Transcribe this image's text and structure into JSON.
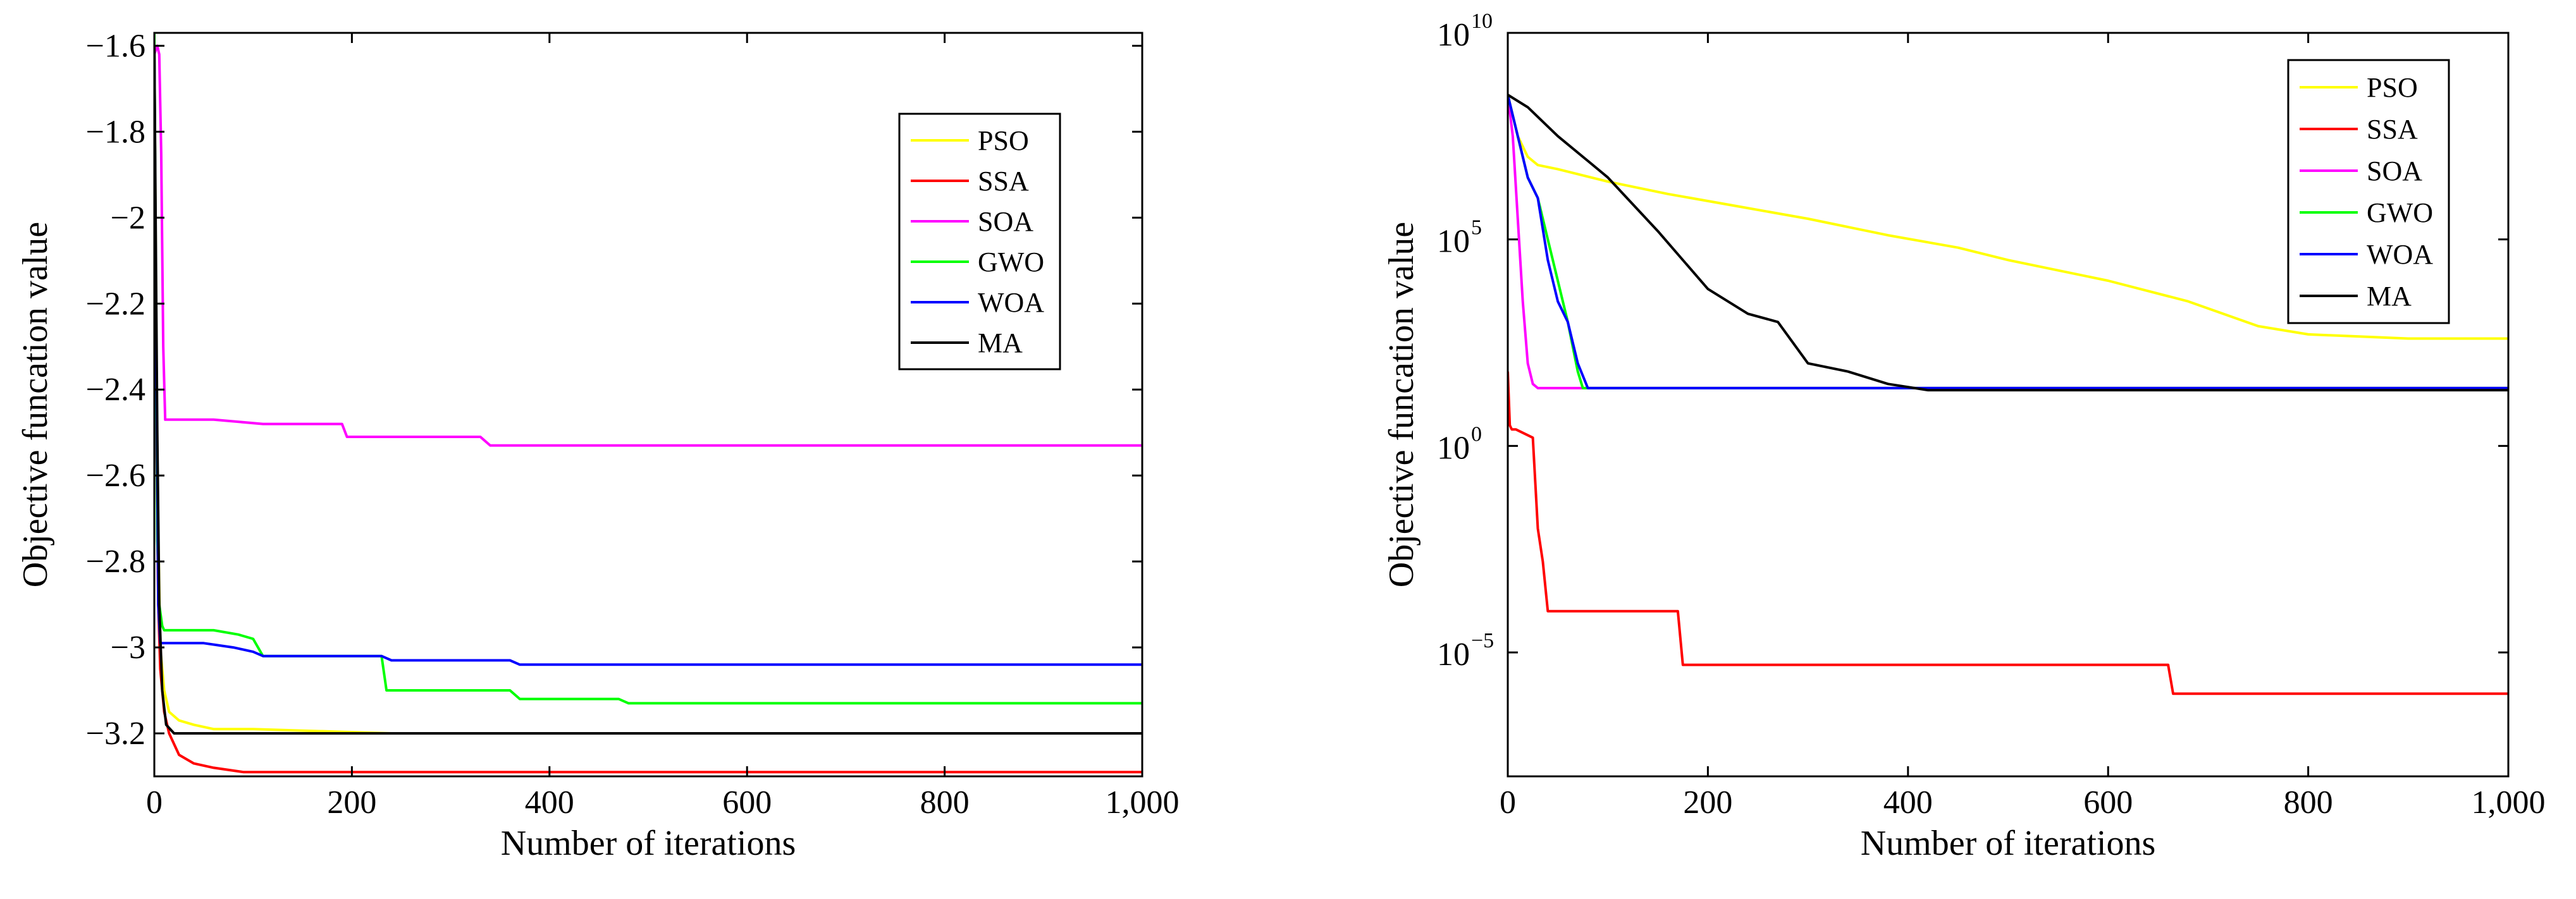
{
  "chart_data": [
    {
      "type": "line",
      "title": "",
      "xlabel": "Number of iterations",
      "ylabel": "Objective funcation value",
      "xlim": [
        0,
        1000
      ],
      "ylim": [
        -3.3,
        -1.57
      ],
      "yscale": "linear",
      "xticks": [
        0,
        200,
        400,
        600,
        800,
        1000
      ],
      "xtick_labels": [
        "0",
        "200",
        "400",
        "600",
        "800",
        "1,000"
      ],
      "yticks": [
        -1.6,
        -1.8,
        -2,
        -2.2,
        -2.4,
        -2.6,
        -2.8,
        -3,
        -3.2
      ],
      "ytick_labels": [
        "-1.6",
        "-1.8",
        "-2",
        "-2.2",
        "-2.4",
        "-2.6",
        "-2.8",
        "-3",
        "-3.2"
      ],
      "legend": "top-right",
      "series": [
        {
          "name": "PSO",
          "color": "#ffff00",
          "x": [
            0,
            3,
            6,
            10,
            15,
            25,
            40,
            60,
            100,
            240,
            1000
          ],
          "y": [
            -1.6,
            -2.6,
            -3.0,
            -3.1,
            -3.15,
            -3.17,
            -3.18,
            -3.19,
            -3.19,
            -3.2,
            -3.2
          ]
        },
        {
          "name": "SSA",
          "color": "#ff0000",
          "x": [
            0,
            2,
            4,
            6,
            10,
            15,
            25,
            40,
            60,
            90,
            1000
          ],
          "y": [
            -1.6,
            -2.5,
            -2.9,
            -3.05,
            -3.15,
            -3.2,
            -3.25,
            -3.27,
            -3.28,
            -3.29,
            -3.29
          ]
        },
        {
          "name": "SOA",
          "color": "#ff00ff",
          "x": [
            0,
            3,
            5,
            7,
            9,
            11,
            60,
            110,
            190,
            195,
            330,
            340,
            1000
          ],
          "y": [
            -1.62,
            -1.6,
            -1.62,
            -1.85,
            -2.3,
            -2.47,
            -2.47,
            -2.48,
            -2.48,
            -2.51,
            -2.51,
            -2.53,
            -2.53
          ]
        },
        {
          "name": "GWO",
          "color": "#00ff00",
          "x": [
            0,
            3,
            5,
            8,
            10,
            60,
            85,
            100,
            110,
            230,
            235,
            360,
            370,
            470,
            480,
            1000
          ],
          "y": [
            -1.57,
            -2.75,
            -2.9,
            -2.95,
            -2.96,
            -2.96,
            -2.97,
            -2.98,
            -3.02,
            -3.02,
            -3.1,
            -3.1,
            -3.12,
            -3.12,
            -3.13,
            -3.13
          ]
        },
        {
          "name": "WOA",
          "color": "#0000ff",
          "x": [
            0,
            2,
            4,
            6,
            10,
            50,
            80,
            100,
            110,
            230,
            240,
            360,
            370,
            1000
          ],
          "y": [
            -1.6,
            -2.3,
            -2.9,
            -2.99,
            -2.99,
            -2.99,
            -3.0,
            -3.01,
            -3.02,
            -3.02,
            -3.03,
            -3.03,
            -3.04,
            -3.04
          ]
        },
        {
          "name": "MA",
          "color": "#000000",
          "x": [
            0,
            2,
            3,
            5,
            8,
            12,
            20,
            1000
          ],
          "y": [
            -1.6,
            -2.2,
            -2.5,
            -2.9,
            -3.1,
            -3.18,
            -3.2,
            -3.2
          ]
        }
      ]
    },
    {
      "type": "line",
      "title": "",
      "xlabel": "Number of iterations",
      "ylabel": "Objective funcation value",
      "xlim": [
        0,
        1000
      ],
      "ylim_log10": [
        -8,
        10
      ],
      "yscale": "log",
      "xticks": [
        0,
        200,
        400,
        600,
        800,
        1000
      ],
      "xtick_labels": [
        "0",
        "200",
        "400",
        "600",
        "800",
        "1,000"
      ],
      "ytick_exponents": [
        10,
        5,
        0,
        -5
      ],
      "ytick_base": "10",
      "ytick_exponent_labels": [
        "10",
        "5",
        "0",
        "−5"
      ],
      "legend": "top-right",
      "series": [
        {
          "name": "PSO",
          "color": "#ffff00",
          "x": [
            0,
            10,
            20,
            30,
            50,
            100,
            160,
            230,
            300,
            380,
            450,
            500,
            600,
            680,
            750,
            800,
            900,
            1000
          ],
          "y_log10": [
            8.5,
            7.5,
            7.0,
            6.8,
            6.7,
            6.4,
            6.1,
            5.8,
            5.5,
            5.1,
            4.8,
            4.5,
            4.0,
            3.5,
            2.9,
            2.7,
            2.6,
            2.6
          ]
        },
        {
          "name": "SSA",
          "color": "#ff0000",
          "x": [
            0,
            2,
            4,
            8,
            25,
            30,
            35,
            40,
            45,
            170,
            175,
            660,
            665,
            1000
          ],
          "y_log10": [
            1.8,
            0.5,
            0.4,
            0.4,
            0.2,
            -2.0,
            -2.8,
            -4.0,
            -4.0,
            -4.0,
            -5.3,
            -5.3,
            -6.0,
            -6.0
          ]
        },
        {
          "name": "SOA",
          "color": "#ff00ff",
          "x": [
            0,
            5,
            10,
            15,
            20,
            25,
            30,
            1000
          ],
          "y_log10": [
            8.5,
            7.5,
            5.5,
            3.5,
            2.0,
            1.5,
            1.4,
            1.4
          ]
        },
        {
          "name": "GWO",
          "color": "#00ff00",
          "x": [
            0,
            10,
            20,
            30,
            40,
            50,
            60,
            70,
            75,
            1000
          ],
          "y_log10": [
            8.5,
            7.5,
            6.5,
            6.0,
            5.0,
            4.0,
            3.0,
            1.8,
            1.4,
            1.4
          ]
        },
        {
          "name": "WOA",
          "color": "#0000ff",
          "x": [
            0,
            10,
            20,
            30,
            40,
            50,
            60,
            70,
            80,
            1000
          ],
          "y_log10": [
            8.5,
            7.5,
            6.5,
            6.0,
            4.5,
            3.5,
            3.0,
            2.0,
            1.4,
            1.4
          ]
        },
        {
          "name": "MA",
          "color": "#000000",
          "x": [
            0,
            20,
            50,
            80,
            100,
            150,
            200,
            240,
            270,
            300,
            340,
            380,
            420,
            1000
          ],
          "y_log10": [
            8.5,
            8.2,
            7.5,
            6.9,
            6.5,
            5.2,
            3.8,
            3.2,
            3.0,
            2.0,
            1.8,
            1.5,
            1.35,
            1.35
          ]
        }
      ]
    }
  ]
}
